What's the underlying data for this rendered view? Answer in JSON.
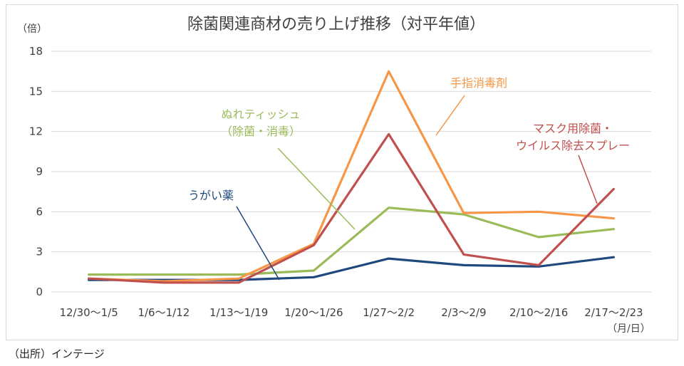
{
  "chart_data": {
    "type": "line",
    "title": "除菌関連商材の売り上げ推移（対平年値）",
    "ylabel": "（倍）",
    "xlabel": "（月/日）",
    "ylim": [
      0,
      18
    ],
    "yticks": [
      0,
      3,
      6,
      9,
      12,
      15,
      18
    ],
    "grid": true,
    "categories": [
      "12/30〜1/5",
      "1/6〜1/12",
      "1/13〜1/19",
      "1/20〜1/26",
      "1/27〜2/2",
      "2/3〜2/9",
      "2/10〜2/16",
      "2/17〜2/23"
    ],
    "series": [
      {
        "name": "うがい薬",
        "color": "#1f497d",
        "values": [
          0.9,
          0.9,
          0.9,
          1.1,
          2.5,
          2.0,
          1.9,
          2.6
        ]
      },
      {
        "name": "ぬれティッシュ（除菌・消毒）",
        "label_lines": [
          "ぬれティッシュ",
          "（除菌・消毒）"
        ],
        "color": "#9bbb59",
        "values": [
          1.3,
          1.3,
          1.3,
          1.6,
          6.3,
          5.8,
          4.1,
          4.7
        ]
      },
      {
        "name": "手指消毒剤",
        "color": "#f79646",
        "values": [
          1.0,
          0.8,
          1.0,
          3.6,
          16.5,
          5.9,
          6.0,
          5.5
        ]
      },
      {
        "name": "マスク用除菌・ウイルス除去スプレー",
        "label_lines": [
          "マスク用除菌・",
          "ウイルス除去スプレー"
        ],
        "color": "#c0504d",
        "values": [
          1.0,
          0.7,
          0.7,
          3.5,
          11.8,
          2.8,
          2.0,
          7.7
        ]
      }
    ]
  },
  "source": "（出所）インテージ"
}
